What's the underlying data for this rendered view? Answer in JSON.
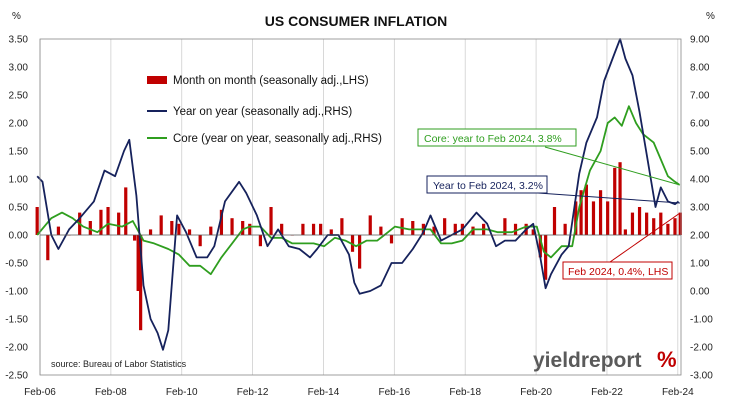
{
  "chart_data": {
    "type": "bar+line",
    "title": "US CONSUMER INFLATION",
    "left_axis_unit": "%",
    "right_axis_unit": "%",
    "left_ylim": [
      -2.5,
      3.5
    ],
    "right_ylim": [
      -3.0,
      9.0
    ],
    "left_ticks": [
      "3.50",
      "3.00",
      "2.50",
      "2.00",
      "1.50",
      "1.00",
      "0.50",
      "0.00",
      "-0.50",
      "-1.00",
      "-1.50",
      "-2.00",
      "-2.50"
    ],
    "right_ticks": [
      "9.00",
      "8.00",
      "7.00",
      "6.00",
      "5.00",
      "4.00",
      "3.00",
      "2.00",
      "1.00",
      "0.00",
      "-1.00",
      "-2.00",
      "-3.00"
    ],
    "x_ticks": [
      "Feb-06",
      "Feb-08",
      "Feb-10",
      "Feb-12",
      "Feb-14",
      "Feb-16",
      "Feb-18",
      "Feb-20",
      "Feb-22",
      "Feb-24"
    ],
    "x_range": [
      2006.08,
      2024.17
    ],
    "grid": "vertical",
    "legend_position": "top-center",
    "colors": {
      "mom": "#c00000",
      "yoy": "#16225c",
      "core": "#2f9e1f",
      "grid": "#cfcfcf",
      "brand_red": "#c00000"
    },
    "series": [
      {
        "name": "Month on month (seasonally adj.,LHS)",
        "axis": "left",
        "kind": "bar",
        "points": [
          [
            2006.0,
            0.5
          ],
          [
            2006.3,
            -0.45
          ],
          [
            2006.6,
            0.15
          ],
          [
            2006.9,
            0.0
          ],
          [
            2007.2,
            0.4
          ],
          [
            2007.5,
            0.25
          ],
          [
            2007.8,
            0.45
          ],
          [
            2008.0,
            0.5
          ],
          [
            2008.3,
            0.4
          ],
          [
            2008.5,
            0.85
          ],
          [
            2008.75,
            -0.1
          ],
          [
            2008.85,
            -1.0
          ],
          [
            2008.92,
            -1.7
          ],
          [
            2009.2,
            0.1
          ],
          [
            2009.5,
            0.35
          ],
          [
            2009.8,
            0.25
          ],
          [
            2010.0,
            0.2
          ],
          [
            2010.3,
            0.1
          ],
          [
            2010.6,
            -0.2
          ],
          [
            2010.9,
            0.15
          ],
          [
            2011.2,
            0.45
          ],
          [
            2011.5,
            0.3
          ],
          [
            2011.8,
            0.25
          ],
          [
            2012.0,
            0.2
          ],
          [
            2012.3,
            -0.2
          ],
          [
            2012.6,
            0.5
          ],
          [
            2012.9,
            0.2
          ],
          [
            2013.2,
            0.0
          ],
          [
            2013.5,
            0.2
          ],
          [
            2013.8,
            0.2
          ],
          [
            2014.0,
            0.2
          ],
          [
            2014.3,
            0.1
          ],
          [
            2014.6,
            0.3
          ],
          [
            2014.9,
            -0.3
          ],
          [
            2015.1,
            -0.6
          ],
          [
            2015.4,
            0.35
          ],
          [
            2015.7,
            0.15
          ],
          [
            2016.0,
            -0.15
          ],
          [
            2016.3,
            0.3
          ],
          [
            2016.6,
            0.25
          ],
          [
            2016.9,
            0.2
          ],
          [
            2017.2,
            0.15
          ],
          [
            2017.5,
            0.3
          ],
          [
            2017.8,
            0.2
          ],
          [
            2018.0,
            0.2
          ],
          [
            2018.3,
            0.15
          ],
          [
            2018.6,
            0.2
          ],
          [
            2018.9,
            0.0
          ],
          [
            2019.2,
            0.3
          ],
          [
            2019.5,
            0.2
          ],
          [
            2019.8,
            0.2
          ],
          [
            2020.0,
            0.1
          ],
          [
            2020.2,
            -0.4
          ],
          [
            2020.35,
            -0.8
          ],
          [
            2020.6,
            0.5
          ],
          [
            2020.9,
            0.2
          ],
          [
            2021.2,
            0.6
          ],
          [
            2021.35,
            0.8
          ],
          [
            2021.5,
            0.9
          ],
          [
            2021.7,
            0.6
          ],
          [
            2021.9,
            0.8
          ],
          [
            2022.1,
            0.6
          ],
          [
            2022.3,
            1.2
          ],
          [
            2022.45,
            1.3
          ],
          [
            2022.6,
            0.1
          ],
          [
            2022.8,
            0.4
          ],
          [
            2023.0,
            0.5
          ],
          [
            2023.2,
            0.4
          ],
          [
            2023.4,
            0.3
          ],
          [
            2023.6,
            0.4
          ],
          [
            2023.8,
            0.2
          ],
          [
            2024.0,
            0.3
          ],
          [
            2024.15,
            0.4
          ]
        ]
      },
      {
        "name": "Year on year (seasonally adj.,RHS)",
        "axis": "right",
        "kind": "line",
        "points": [
          [
            2006.0,
            4.1
          ],
          [
            2006.15,
            3.9
          ],
          [
            2006.4,
            2.0
          ],
          [
            2006.6,
            1.5
          ],
          [
            2006.9,
            2.2
          ],
          [
            2007.2,
            2.6
          ],
          [
            2007.6,
            3.2
          ],
          [
            2007.9,
            4.3
          ],
          [
            2008.2,
            4.1
          ],
          [
            2008.45,
            5.0
          ],
          [
            2008.6,
            5.4
          ],
          [
            2008.8,
            3.4
          ],
          [
            2009.0,
            0.2
          ],
          [
            2009.2,
            -1.0
          ],
          [
            2009.4,
            -1.5
          ],
          [
            2009.55,
            -2.1
          ],
          [
            2009.7,
            -1.4
          ],
          [
            2009.95,
            2.7
          ],
          [
            2010.2,
            2.1
          ],
          [
            2010.5,
            1.2
          ],
          [
            2010.8,
            1.2
          ],
          [
            2011.0,
            1.6
          ],
          [
            2011.3,
            3.2
          ],
          [
            2011.7,
            3.9
          ],
          [
            2011.9,
            3.5
          ],
          [
            2012.2,
            2.7
          ],
          [
            2012.5,
            1.6
          ],
          [
            2012.8,
            2.2
          ],
          [
            2013.1,
            1.6
          ],
          [
            2013.4,
            1.5
          ],
          [
            2013.7,
            1.2
          ],
          [
            2013.9,
            1.5
          ],
          [
            2014.2,
            2.0
          ],
          [
            2014.5,
            2.0
          ],
          [
            2014.8,
            1.3
          ],
          [
            2014.95,
            0.3
          ],
          [
            2015.1,
            -0.1
          ],
          [
            2015.4,
            0.0
          ],
          [
            2015.7,
            0.2
          ],
          [
            2016.0,
            1.0
          ],
          [
            2016.3,
            1.0
          ],
          [
            2016.6,
            1.5
          ],
          [
            2016.9,
            2.1
          ],
          [
            2017.1,
            2.7
          ],
          [
            2017.4,
            1.8
          ],
          [
            2017.7,
            2.0
          ],
          [
            2018.0,
            2.2
          ],
          [
            2018.4,
            2.8
          ],
          [
            2018.7,
            2.4
          ],
          [
            2018.95,
            1.6
          ],
          [
            2019.2,
            1.8
          ],
          [
            2019.5,
            1.8
          ],
          [
            2019.8,
            2.2
          ],
          [
            2020.0,
            2.4
          ],
          [
            2020.2,
            1.2
          ],
          [
            2020.35,
            0.1
          ],
          [
            2020.5,
            0.6
          ],
          [
            2020.8,
            1.3
          ],
          [
            2021.0,
            1.6
          ],
          [
            2021.3,
            4.2
          ],
          [
            2021.5,
            5.3
          ],
          [
            2021.8,
            6.2
          ],
          [
            2022.0,
            7.5
          ],
          [
            2022.3,
            8.5
          ],
          [
            2022.45,
            9.0
          ],
          [
            2022.6,
            8.3
          ],
          [
            2022.8,
            7.7
          ],
          [
            2023.0,
            6.4
          ],
          [
            2023.2,
            4.9
          ],
          [
            2023.45,
            3.0
          ],
          [
            2023.6,
            3.7
          ],
          [
            2023.8,
            3.2
          ],
          [
            2024.0,
            3.1
          ],
          [
            2024.1,
            3.2
          ]
        ]
      },
      {
        "name": "Core (year on year, seasonally adj.,RHS)",
        "axis": "right",
        "kind": "line",
        "points": [
          [
            2006.0,
            2.0
          ],
          [
            2006.4,
            2.6
          ],
          [
            2006.7,
            2.8
          ],
          [
            2007.0,
            2.6
          ],
          [
            2007.3,
            2.3
          ],
          [
            2007.7,
            2.1
          ],
          [
            2008.0,
            2.4
          ],
          [
            2008.4,
            2.3
          ],
          [
            2008.7,
            2.5
          ],
          [
            2009.0,
            1.8
          ],
          [
            2009.3,
            1.7
          ],
          [
            2009.7,
            1.5
          ],
          [
            2010.0,
            1.3
          ],
          [
            2010.3,
            0.9
          ],
          [
            2010.6,
            0.9
          ],
          [
            2010.9,
            0.6
          ],
          [
            2011.2,
            1.2
          ],
          [
            2011.5,
            1.7
          ],
          [
            2011.8,
            2.2
          ],
          [
            2012.0,
            2.3
          ],
          [
            2012.3,
            2.3
          ],
          [
            2012.6,
            1.9
          ],
          [
            2012.9,
            1.9
          ],
          [
            2013.2,
            1.7
          ],
          [
            2013.5,
            1.7
          ],
          [
            2013.8,
            1.7
          ],
          [
            2014.1,
            1.6
          ],
          [
            2014.4,
            1.9
          ],
          [
            2014.7,
            1.8
          ],
          [
            2015.0,
            1.6
          ],
          [
            2015.3,
            1.8
          ],
          [
            2015.6,
            1.8
          ],
          [
            2015.9,
            2.1
          ],
          [
            2016.1,
            2.3
          ],
          [
            2016.5,
            2.2
          ],
          [
            2016.8,
            2.2
          ],
          [
            2017.1,
            2.2
          ],
          [
            2017.4,
            1.7
          ],
          [
            2017.7,
            1.7
          ],
          [
            2018.0,
            1.8
          ],
          [
            2018.3,
            2.2
          ],
          [
            2018.7,
            2.2
          ],
          [
            2019.0,
            2.1
          ],
          [
            2019.4,
            2.1
          ],
          [
            2019.8,
            2.3
          ],
          [
            2020.1,
            2.3
          ],
          [
            2020.3,
            1.4
          ],
          [
            2020.5,
            1.2
          ],
          [
            2020.8,
            1.6
          ],
          [
            2021.1,
            1.6
          ],
          [
            2021.3,
            3.0
          ],
          [
            2021.6,
            4.3
          ],
          [
            2021.9,
            5.0
          ],
          [
            2022.1,
            6.0
          ],
          [
            2022.3,
            6.2
          ],
          [
            2022.5,
            5.9
          ],
          [
            2022.7,
            6.6
          ],
          [
            2022.9,
            6.0
          ],
          [
            2023.1,
            5.6
          ],
          [
            2023.4,
            5.3
          ],
          [
            2023.6,
            4.7
          ],
          [
            2023.8,
            4.1
          ],
          [
            2024.0,
            3.9
          ],
          [
            2024.12,
            3.8
          ]
        ]
      }
    ],
    "annotations": [
      {
        "text": "Core: year to Feb 2024, 3.8%",
        "color": "green",
        "target": [
          2024.12,
          3.8
        ]
      },
      {
        "text": "Year to Feb 2024, 3.2%",
        "color": "navy",
        "target": [
          2024.1,
          3.2
        ]
      },
      {
        "text": "Feb 2024, 0.4%, LHS",
        "color": "red",
        "target": [
          2024.15,
          0.4
        ]
      }
    ],
    "source": "source: Bureau of Labor Statistics"
  },
  "brand": {
    "main": "yieldreport",
    "accent": "%"
  }
}
